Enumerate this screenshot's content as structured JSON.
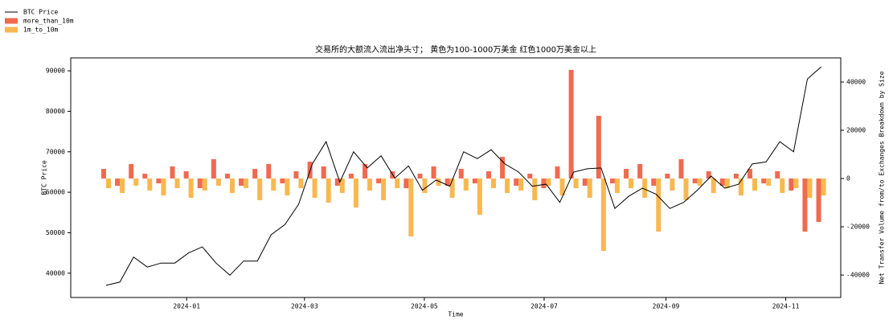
{
  "chart_data": {
    "type": "combo",
    "title": "交易所的大额流入流出净头寸； 黄色为100-1000万美金 红色1000万美金以上",
    "x_label": "Time",
    "y_label": "BTC Price",
    "y2_label": "Net Transfer Volume from/to Exchanges Breakdown by Size",
    "x": [
      "2023-11-21",
      "2023-11-28",
      "2023-12-05",
      "2023-12-12",
      "2023-12-19",
      "2023-12-26",
      "2024-01-02",
      "2024-01-09",
      "2024-01-16",
      "2024-01-23",
      "2024-01-30",
      "2024-02-06",
      "2024-02-13",
      "2024-02-20",
      "2024-02-27",
      "2024-03-05",
      "2024-03-12",
      "2024-03-19",
      "2024-03-26",
      "2024-04-02",
      "2024-04-09",
      "2024-04-16",
      "2024-04-23",
      "2024-04-30",
      "2024-05-07",
      "2024-05-14",
      "2024-05-21",
      "2024-05-28",
      "2024-06-04",
      "2024-06-11",
      "2024-06-18",
      "2024-06-25",
      "2024-07-02",
      "2024-07-09",
      "2024-07-16",
      "2024-07-23",
      "2024-07-30",
      "2024-08-06",
      "2024-08-13",
      "2024-08-20",
      "2024-08-27",
      "2024-09-03",
      "2024-09-10",
      "2024-09-17",
      "2024-09-24",
      "2024-10-01",
      "2024-10-08",
      "2024-10-15",
      "2024-10-22",
      "2024-10-29",
      "2024-11-05",
      "2024-11-12",
      "2024-11-19"
    ],
    "series": [
      {
        "name": "BTC Price",
        "type": "line",
        "color": "#000000",
        "axis": "y",
        "values": [
          37000,
          37800,
          44000,
          41500,
          42500,
          42500,
          45000,
          46500,
          42500,
          39500,
          43000,
          43000,
          49500,
          52000,
          57000,
          67000,
          72500,
          62500,
          70000,
          66000,
          69000,
          63500,
          66500,
          60500,
          63000,
          61500,
          70000,
          68300,
          70500,
          67000,
          65000,
          61500,
          62000,
          57500,
          65000,
          65800,
          66000,
          56000,
          59000,
          61000,
          59500,
          56000,
          57500,
          60500,
          64000,
          61000,
          62000,
          67000,
          67500,
          72500,
          70000,
          88000,
          91000
        ]
      },
      {
        "name": "more_than_10m",
        "type": "bar",
        "color": "#ef6a50",
        "axis": "y2",
        "values": [
          4000,
          -3000,
          6000,
          2000,
          -2000,
          5000,
          3000,
          -4000,
          8000,
          2000,
          -3000,
          4000,
          6000,
          -2000,
          3000,
          7000,
          5000,
          -3000,
          2000,
          6000,
          -2000,
          3000,
          -4000,
          2000,
          5000,
          -3000,
          4000,
          -2000,
          3000,
          9000,
          -3000,
          2000,
          -4000,
          5000,
          45000,
          -3000,
          26000,
          -2000,
          4000,
          6000,
          -3000,
          2000,
          8000,
          -2000,
          3000,
          -3000,
          2000,
          4000,
          -2000,
          3000,
          -5000,
          -22000,
          -18000
        ]
      },
      {
        "name": "1m_to_10m",
        "type": "bar",
        "color": "#f8b850",
        "axis": "y2",
        "values": [
          -4000,
          -6000,
          -3000,
          -5000,
          -7000,
          -4000,
          -8000,
          -5000,
          -3000,
          -6000,
          -4000,
          -9000,
          -5000,
          -7000,
          -4000,
          -8000,
          -10000,
          -6000,
          -12000,
          -5000,
          -9000,
          -4000,
          -24000,
          -6000,
          -3000,
          -8000,
          -5000,
          -15000,
          -4000,
          -6000,
          -5000,
          -9000,
          -3000,
          -7000,
          -4000,
          -8000,
          -30000,
          -6000,
          -4000,
          -8000,
          -22000,
          -5000,
          -9000,
          -3000,
          -6000,
          -4000,
          -7000,
          -5000,
          -3000,
          -6000,
          -4000,
          -8000,
          -7000
        ]
      }
    ],
    "xlim": [
      "2023-11-03",
      "2024-11-29"
    ],
    "xticks": [
      {
        "value": "2024-01-01",
        "label": "2024-01"
      },
      {
        "value": "2024-03-01",
        "label": "2024-03"
      },
      {
        "value": "2024-05-01",
        "label": "2024-05"
      },
      {
        "value": "2024-07-01",
        "label": "2024-07"
      },
      {
        "value": "2024-09-01",
        "label": "2024-09"
      },
      {
        "value": "2024-11-01",
        "label": "2024-11"
      }
    ],
    "ylim": [
      34000,
      93200
    ],
    "yticks": [
      40000,
      50000,
      60000,
      70000,
      80000,
      90000
    ],
    "y2lim": [
      -49300,
      50000
    ],
    "y2ticks": [
      -40000,
      -20000,
      0,
      20000,
      40000
    ],
    "legend": "upper-left"
  }
}
